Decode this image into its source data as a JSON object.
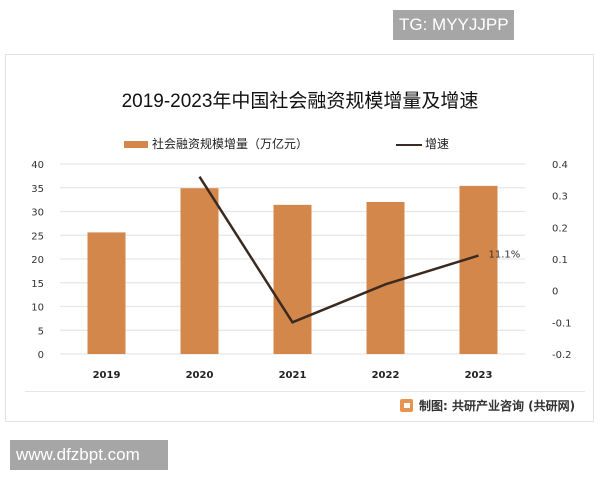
{
  "badges": {
    "top_right": "TG: MYYJJPP",
    "bottom_left": "www.dfzbpt.com"
  },
  "chart_title": "2019-2023年中国社会融资规模增量及增速",
  "legend": {
    "bar_label": "社会融资规模增量（万亿元）",
    "line_label": "增速"
  },
  "source": "制图: 共研产业咨询 (共研网)",
  "annotation": "11.1%",
  "colors": {
    "bar": "#d4874a",
    "line": "#3b2a1f",
    "grid": "#e6e6e6"
  },
  "chart_data": {
    "type": "bar",
    "title": "2019-2023年中国社会融资规模增量及增速",
    "categories": [
      "2019",
      "2020",
      "2021",
      "2022",
      "2023"
    ],
    "series": [
      {
        "name": "社会融资规模增量（万亿元）",
        "type": "bar",
        "axis": "left",
        "values": [
          25.6,
          34.9,
          31.4,
          32.0,
          35.4
        ]
      },
      {
        "name": "增速",
        "type": "line",
        "axis": "right",
        "values": [
          null,
          0.36,
          -0.1,
          0.02,
          0.111
        ]
      }
    ],
    "annotations": [
      {
        "category": "2023",
        "series": "增速",
        "text": "11.1%"
      }
    ],
    "left_axis": {
      "ylim": [
        0,
        40
      ],
      "ticks": [
        "0",
        "5",
        "10",
        "15",
        "20",
        "25",
        "30",
        "35",
        "40"
      ]
    },
    "right_axis": {
      "ylim": [
        -0.2,
        0.4
      ],
      "ticks": [
        "-0.2",
        "-0.1",
        "0",
        "0.1",
        "0.2",
        "0.3",
        "0.4"
      ]
    },
    "xlabel": "",
    "ylabel": "",
    "grid": true,
    "legend_position": "top"
  }
}
